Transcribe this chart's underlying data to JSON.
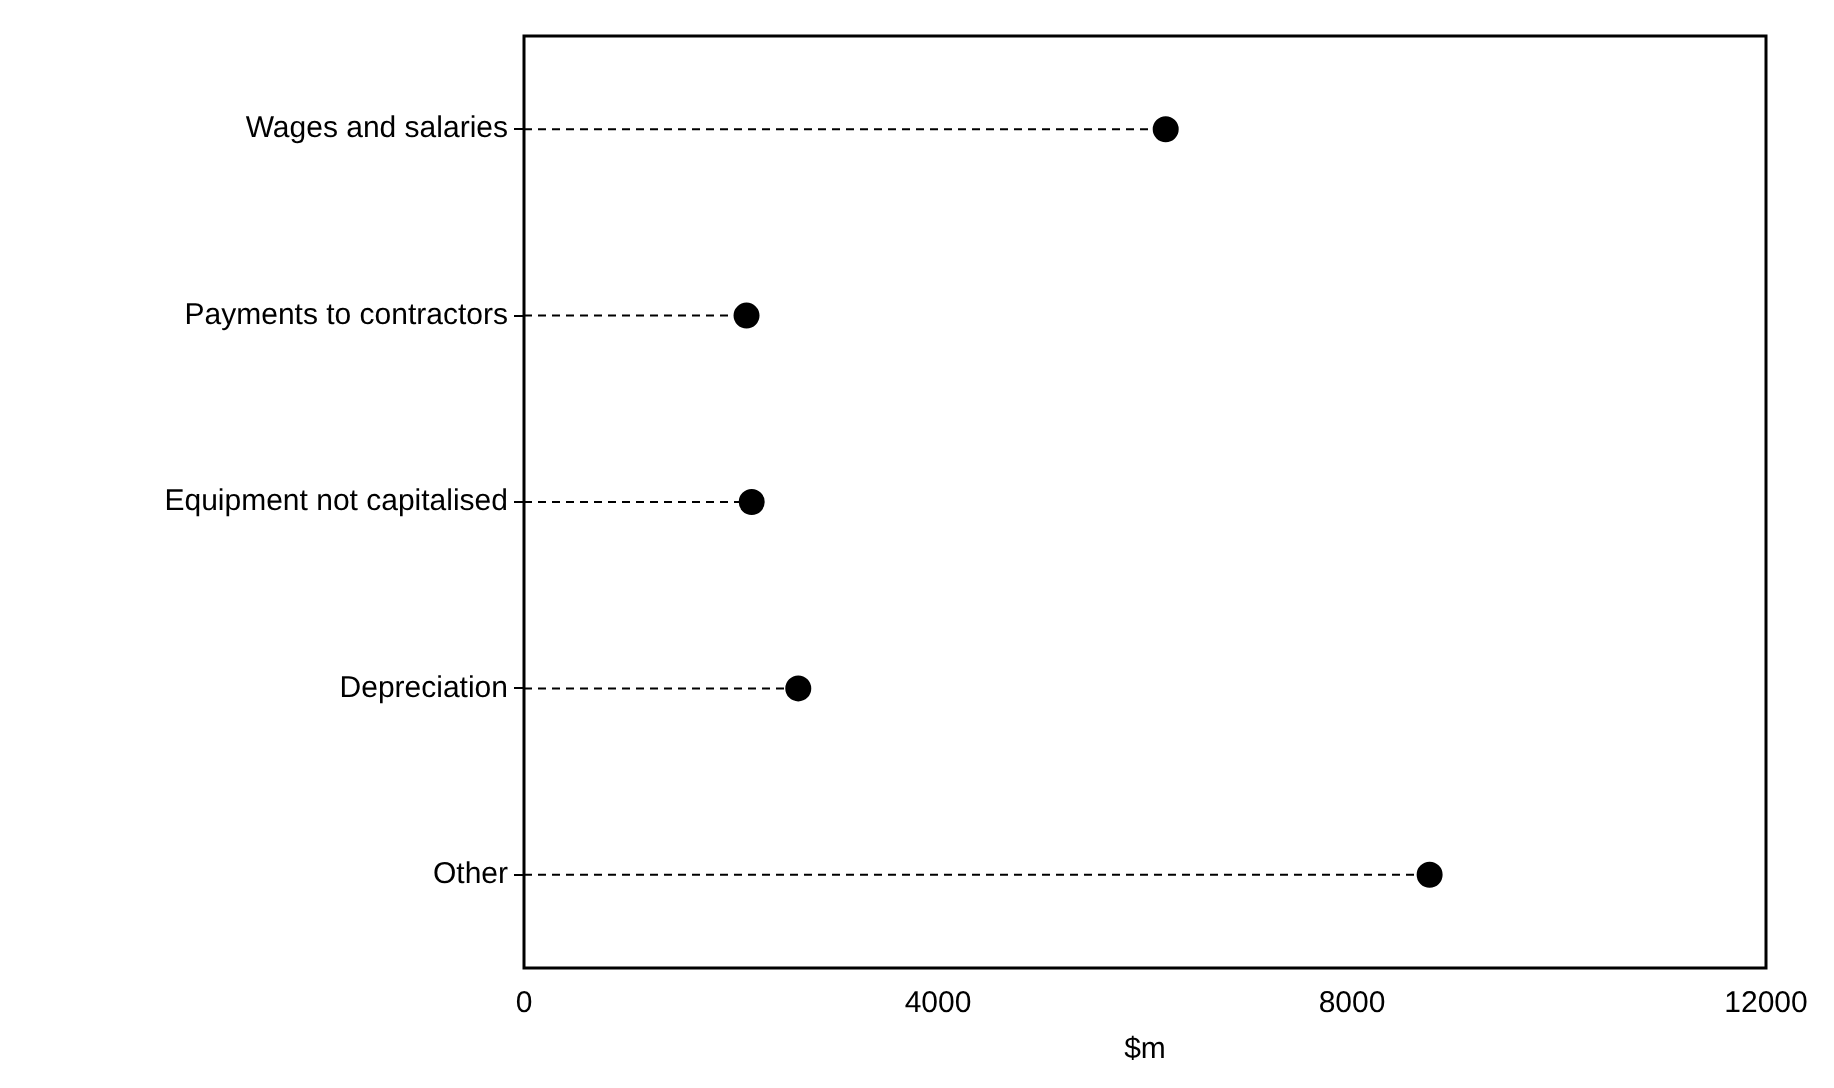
{
  "chart_data": {
    "type": "lollipop",
    "orientation": "horizontal",
    "xlabel": "$m",
    "categories": [
      "Wages and salaries",
      "Payments to contractors",
      "Equipment not capitalised",
      "Depreciation",
      "Other"
    ],
    "values": [
      6200,
      2150,
      2200,
      2650,
      8750
    ],
    "color": "#000000",
    "xlim": [
      0,
      12000
    ],
    "xticks": [
      0,
      4000,
      8000,
      12000
    ],
    "grid": false,
    "marker": "circle",
    "line_style": "dashed"
  }
}
